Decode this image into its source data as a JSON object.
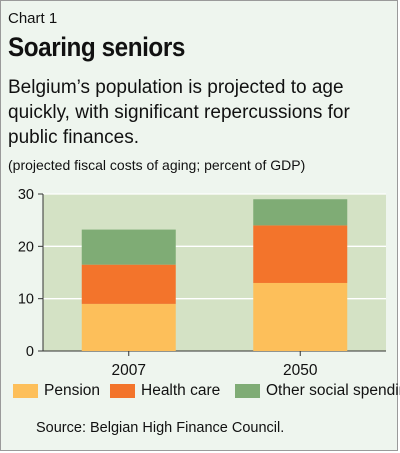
{
  "header": {
    "kicker": "Chart 1",
    "title": "Soaring seniors",
    "subtitle": "Belgium’s population is projected to age quickly, with significant repercussions for public finances.",
    "note": "(projected fiscal costs of aging; percent of GDP)"
  },
  "source": "Source: Belgian High Finance Council.",
  "colors": {
    "pension": "#fdbf5a",
    "health": "#f3742b",
    "other": "#7fac75",
    "plot_bg": "#d4e2c5",
    "grid": "#ffffff",
    "panel_bg": "#eef5ee"
  },
  "chart_data": {
    "type": "bar",
    "stacked": true,
    "categories": [
      "2007",
      "2050"
    ],
    "series": [
      {
        "name": "Pension",
        "values": [
          9,
          13
        ],
        "color": "#fdbf5a"
      },
      {
        "name": "Health care",
        "values": [
          7.5,
          11
        ],
        "color": "#f3742b"
      },
      {
        "name": "Other social spending",
        "values": [
          6.7,
          5
        ],
        "color": "#7fac75"
      }
    ],
    "yticks": [
      "0",
      "10",
      "20",
      "30"
    ],
    "ylim": [
      0,
      30
    ],
    "grid": true,
    "legend": "bottom",
    "xlabel": "",
    "ylabel": ""
  }
}
